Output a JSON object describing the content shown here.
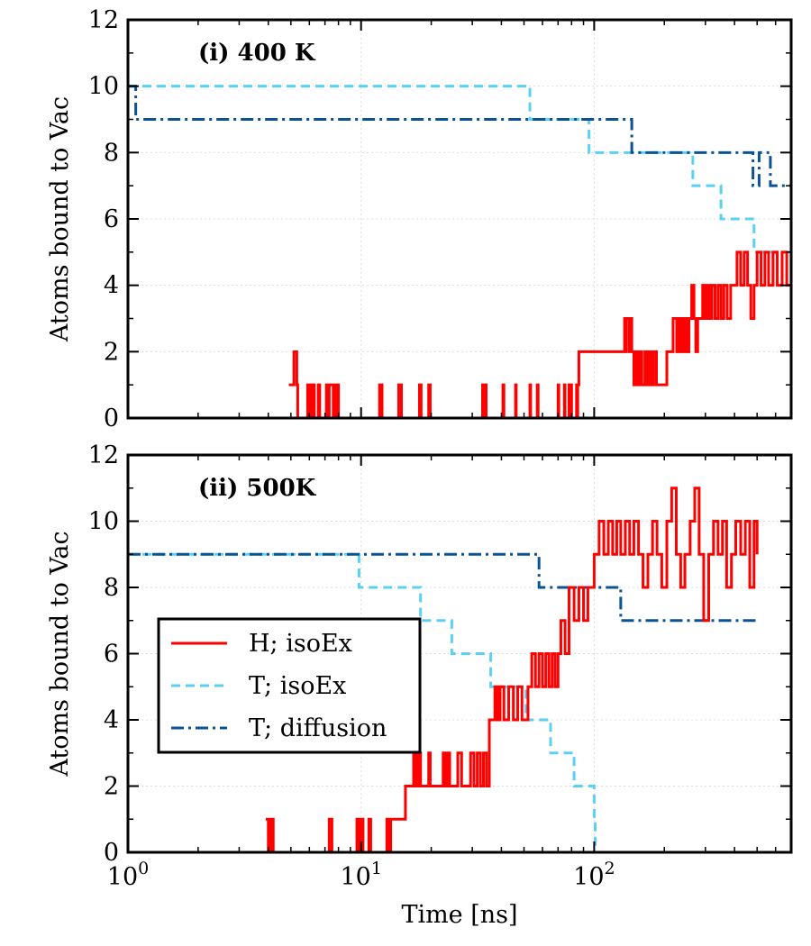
{
  "chart_data": {
    "type": "line",
    "xlabel": "Time [ns]",
    "x_scale": "log",
    "xlim": [
      1,
      700
    ],
    "x_ticks": [
      {
        "value": 1,
        "base": "10",
        "exp": "0"
      },
      {
        "value": 10,
        "base": "10",
        "exp": "1"
      },
      {
        "value": 100,
        "base": "10",
        "exp": "2"
      }
    ],
    "legend": {
      "placement": "lower-left of panel (ii)",
      "entries": [
        {
          "series": "H; isoEx",
          "label": "H; isoEx",
          "color": "#ff0000",
          "dash": "solid"
        },
        {
          "series": "T; isoEx",
          "label": "T; isoEx",
          "color": "#5bd0f5",
          "dash": "dashed"
        },
        {
          "series": "T; diffusion",
          "label": "T; diffusion",
          "color": "#0b5394",
          "dash": "dashdot"
        }
      ]
    },
    "panels": [
      {
        "title": "(i) 400 K",
        "ylabel": "Atoms bound to Vac",
        "ylim": [
          0,
          12
        ],
        "yticks": [
          "0",
          "2",
          "4",
          "6",
          "8",
          "10",
          "12"
        ],
        "grid": true,
        "series": [
          {
            "name": "H; isoEx",
            "color": "#ff0000",
            "dash": "solid",
            "x": [
              4.9,
              5.15,
              5.3,
              5.35,
              5.9,
              6.05,
              6.15,
              6.3,
              6.55,
              6.65,
              7.1,
              7.2,
              7.3,
              7.6,
              7.8,
              8.0,
              12.0,
              12.3,
              14.5,
              14.9,
              17.8,
              18.1,
              19.5,
              19.8,
              33.2,
              33.6,
              34.0,
              34.4,
              40.6,
              41.0,
              46.0,
              46.3,
              53.0,
              53.4,
              57.0,
              57.5,
              70.0,
              70.5,
              74.5,
              75.0,
              78.0,
              78.6,
              79.2,
              80.0,
              84.0,
              84.5,
              85.0,
              86.0,
              96.0,
              97.0,
              98.0,
              99.0,
              100.0,
              135.0,
              136.0,
              137.0,
              141.0,
              142.0,
              145.0,
              148.0,
              151.0,
              153.0,
              156.0,
              160.0,
              165.0,
              168.0,
              172.0,
              176.0,
              180.0,
              185.0,
              190.0,
              197.0,
              205.0,
              212.0,
              218.0,
              226.0,
              232.0,
              238.0,
              244.0,
              250.0,
              255.0,
              262.0,
              268.0,
              273.0,
              278.0,
              285.0,
              292.0,
              298.0,
              305.0,
              312.0,
              320.0,
              330.0,
              340.0,
              350.0,
              360.0,
              372.0,
              385.0,
              398.0,
              410.0,
              425.0,
              440.0,
              455.0,
              470.0,
              485.0,
              500.0,
              520.0,
              540.0,
              560.0,
              585.0,
              610.0,
              640.0,
              670.0,
              700.0
            ],
            "y": [
              1,
              2,
              1,
              0,
              1,
              0,
              1,
              0,
              1,
              0,
              1,
              0,
              1,
              0,
              1,
              0,
              1,
              0,
              1,
              0,
              1,
              0,
              1,
              0,
              1,
              0,
              1,
              0,
              1,
              0,
              1,
              0,
              1,
              0,
              1,
              0,
              1,
              0,
              1,
              0,
              1,
              0,
              1,
              0,
              1,
              0,
              1,
              2,
              2,
              2,
              2,
              2,
              2,
              3,
              2,
              3,
              2,
              3,
              2,
              1,
              2,
              1,
              2,
              1,
              2,
              1,
              2,
              1,
              2,
              1,
              1,
              1,
              2,
              2,
              3,
              2,
              3,
              2,
              3,
              2,
              3,
              4,
              3,
              2,
              3,
              3,
              4,
              3,
              4,
              3,
              4,
              3,
              4,
              3,
              4,
              3,
              4,
              4,
              5,
              4,
              5,
              4,
              3,
              4,
              5,
              4,
              5,
              4,
              5,
              4,
              5,
              4,
              4
            ]
          },
          {
            "name": "T; isoEx",
            "color": "#5bd0f5",
            "dash": "dashed",
            "x": [
              1.0,
              53.0,
              95.0,
              265.0,
              350.0,
              485.0,
              700.0
            ],
            "y": [
              10,
              9,
              8,
              7,
              6,
              5,
              5
            ]
          },
          {
            "name": "T; diffusion",
            "color": "#0b5394",
            "dash": "dashdot",
            "x": [
              1.0,
              1.08,
              145.0,
              480.0,
              510.0,
              570.0,
              700.0
            ],
            "y": [
              10,
              9,
              8,
              7,
              8,
              7,
              7
            ]
          }
        ]
      },
      {
        "title": "(ii) 500K",
        "ylabel": "Atoms bound to Vac",
        "ylim": [
          0,
          12
        ],
        "yticks": [
          "0",
          "2",
          "4",
          "6",
          "8",
          "10",
          "12"
        ],
        "grid": true,
        "series": [
          {
            "name": "H; isoEx",
            "color": "#ff0000",
            "dash": "solid",
            "x": [
              3.9,
              4.0,
              4.1,
              4.2,
              7.3,
              7.5,
              9.6,
              9.8,
              10.0,
              10.2,
              10.8,
              11.0,
              12.9,
              13.2,
              13.4,
              14.5,
              15.5,
              16.8,
              17.2,
              17.6,
              18.0,
              19.5,
              19.8,
              22.5,
              23.0,
              23.5,
              24.0,
              26.0,
              27.0,
              29.5,
              30.5,
              31.5,
              32.5,
              33.5,
              34.5,
              35.5,
              37.5,
              38.5,
              39.5,
              41.0,
              43.0,
              45.0,
              47.0,
              49.0,
              52.0,
              54.0,
              56.0,
              58.0,
              60.0,
              62.0,
              64.0,
              66.0,
              68.0,
              70.0,
              72.0,
              75.0,
              78.0,
              82.0,
              86.0,
              90.0,
              94.0,
              97.0,
              100.0,
              105.0,
              110.0,
              115.0,
              120.0,
              125.0,
              130.0,
              136.0,
              142.0,
              148.0,
              155.0,
              162.0,
              170.0,
              178.0,
              186.0,
              195.0,
              205.0,
              215.0,
              225.0,
              235.0,
              245.0,
              258.0,
              270.0,
              282.0,
              295.0,
              310.0,
              325.0,
              340.0,
              355.0,
              370.0,
              388.0,
              405.0,
              425.0,
              445.0,
              465.0,
              485.0,
              500.0
            ],
            "y": [
              1,
              0,
              1,
              0,
              1,
              0,
              1,
              0,
              1,
              0,
              1,
              0,
              1,
              0,
              1,
              1,
              2,
              3,
              2,
              3,
              2,
              3,
              2,
              3,
              2,
              3,
              2,
              3,
              2,
              3,
              2,
              3,
              2,
              3,
              2,
              4,
              5,
              4,
              5,
              4,
              5,
              4,
              5,
              4,
              5,
              6,
              5,
              6,
              5,
              6,
              5,
              6,
              5,
              6,
              7,
              6,
              8,
              7,
              8,
              7,
              8,
              8,
              9,
              10,
              9,
              10,
              9,
              10,
              9,
              10,
              9,
              10,
              9,
              8,
              9,
              10,
              9,
              8,
              10,
              11,
              9,
              8,
              9,
              10,
              11,
              9,
              7,
              9,
              10,
              9,
              10,
              8,
              9,
              10,
              9,
              10,
              8,
              10,
              9
            ]
          },
          {
            "name": "T; isoEx",
            "color": "#5bd0f5",
            "dash": "dashed",
            "x": [
              1.0,
              9.8,
              18.0,
              24.5,
              36.0,
              51.0,
              65.0,
              82.0,
              100.0,
              101.0
            ],
            "y": [
              9,
              8,
              7,
              6,
              5,
              4,
              3,
              2,
              1,
              0
            ]
          },
          {
            "name": "T; diffusion",
            "color": "#0b5394",
            "dash": "dashdot",
            "x": [
              1.0,
              58.0,
              130.0,
              500.0
            ],
            "y": [
              9,
              8,
              7,
              7
            ]
          }
        ]
      }
    ]
  }
}
